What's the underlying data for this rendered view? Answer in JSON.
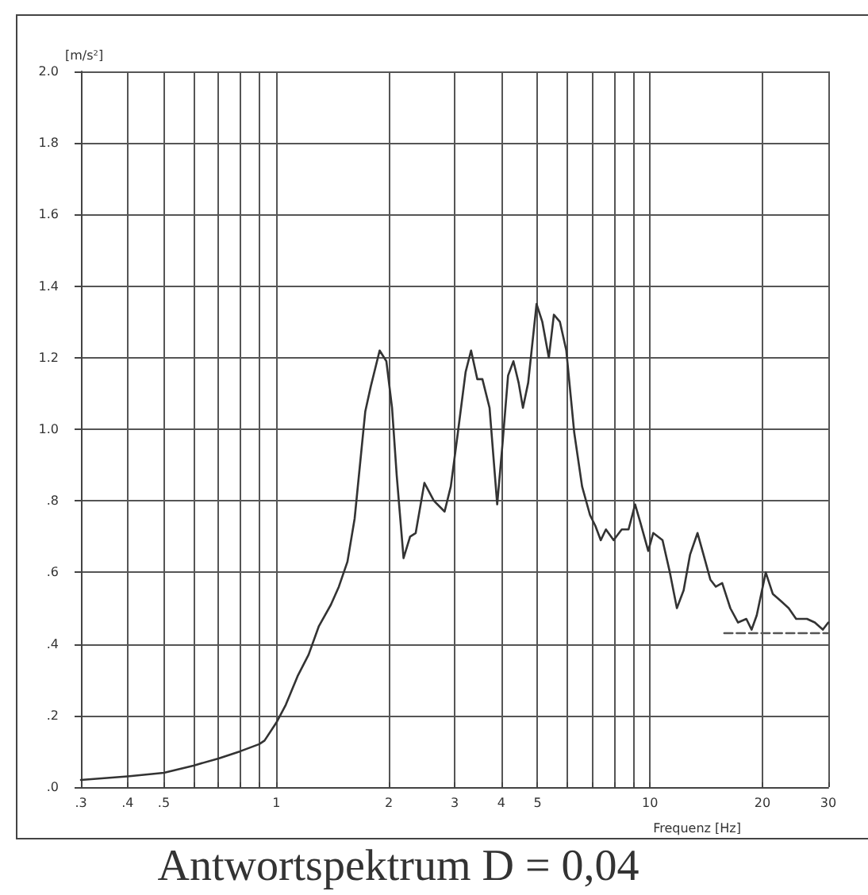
{
  "chart_data": {
    "type": "line",
    "title": "Antwortspektrum D = 0,04",
    "xlabel": "Frequenz [Hz]",
    "ylabel": "[m/s²]",
    "log": "x",
    "grid": true,
    "marker": "none",
    "xlim": [
      0.3,
      30
    ],
    "ylim": [
      0,
      2
    ],
    "xticks": [
      {
        "value": 0.3,
        "label": ".3"
      },
      {
        "value": 0.4,
        "label": ".4"
      },
      {
        "value": 0.5,
        "label": ".5"
      },
      {
        "value": 0.6,
        "label": null
      },
      {
        "value": 0.7,
        "label": null
      },
      {
        "value": 0.8,
        "label": null
      },
      {
        "value": 0.9,
        "label": null
      },
      1,
      2,
      3,
      4,
      5,
      {
        "value": 6,
        "label": null
      },
      {
        "value": 7,
        "label": null
      },
      {
        "value": 8,
        "label": null
      },
      {
        "value": 9,
        "label": null
      },
      10,
      20,
      30
    ],
    "yticks": [
      {
        "value": 0,
        "label": ".0"
      },
      {
        "value": 0.2,
        "label": ".2"
      },
      {
        "value": 0.4,
        "label": ".4"
      },
      {
        "value": 0.6,
        "label": ".6"
      },
      {
        "value": 0.8,
        "label": ".8"
      },
      {
        "value": 1,
        "label": "1.0"
      },
      {
        "value": 1.2,
        "label": "1.2"
      },
      {
        "value": 1.4,
        "label": "1.4"
      },
      {
        "value": 1.6,
        "label": "1.6"
      },
      {
        "value": 1.8,
        "label": "1.8"
      },
      {
        "value": 2,
        "label": "2.0"
      }
    ],
    "series": [
      {
        "color": "#333333",
        "line_style": "solid",
        "x": [
          0.3,
          0.4,
          0.5,
          0.6,
          0.7,
          0.8,
          0.9,
          0.93,
          1.0,
          1.06,
          1.14,
          1.22,
          1.3,
          1.4,
          1.47,
          1.55,
          1.62,
          1.73,
          1.79,
          1.89,
          1.97,
          2.04,
          2.1,
          2.19,
          2.28,
          2.36,
          2.49,
          2.64,
          2.82,
          2.93,
          3.06,
          3.21,
          3.32,
          3.45,
          3.56,
          3.72,
          3.9,
          4.03,
          4.17,
          4.31,
          4.45,
          4.57,
          4.72,
          4.97,
          5.15,
          5.36,
          5.53,
          5.74,
          5.97,
          6.27,
          6.58,
          6.91,
          7.14,
          7.38,
          7.62,
          7.99,
          8.4,
          8.76,
          9.12,
          9.42,
          9.89,
          10.2,
          10.8,
          11.3,
          11.8,
          12.3,
          12.8,
          13.4,
          13.9,
          14.5,
          15.0,
          15.6,
          16.4,
          17.2,
          18.1,
          18.7,
          19.3,
          20.4,
          21.3,
          22.4,
          23.5,
          24.6,
          26.3,
          27.6,
          29.0,
          30
        ],
        "values": [
          0.02,
          0.03,
          0.04,
          0.06,
          0.08,
          0.1,
          0.12,
          0.13,
          0.18,
          0.23,
          0.31,
          0.37,
          0.45,
          0.51,
          0.56,
          0.63,
          0.75,
          1.05,
          1.12,
          1.22,
          1.19,
          1.06,
          0.87,
          0.64,
          0.7,
          0.71,
          0.85,
          0.8,
          0.77,
          0.84,
          0.99,
          1.16,
          1.22,
          1.14,
          1.14,
          1.06,
          0.79,
          0.96,
          1.15,
          1.19,
          1.13,
          1.06,
          1.13,
          1.35,
          1.3,
          1.2,
          1.32,
          1.3,
          1.22,
          0.99,
          0.84,
          0.76,
          0.73,
          0.69,
          0.72,
          0.69,
          0.72,
          0.72,
          0.79,
          0.74,
          0.66,
          0.71,
          0.69,
          0.6,
          0.5,
          0.55,
          0.65,
          0.71,
          0.65,
          0.58,
          0.56,
          0.57,
          0.5,
          0.46,
          0.47,
          0.44,
          0.48,
          0.6,
          0.54,
          0.52,
          0.5,
          0.47,
          0.47,
          0.46,
          0.44,
          0.46
        ]
      },
      {
        "color": "#555555",
        "line_style": "dashed",
        "x": [
          15.8,
          30
        ],
        "values": [
          0.43,
          0.43
        ]
      }
    ]
  }
}
